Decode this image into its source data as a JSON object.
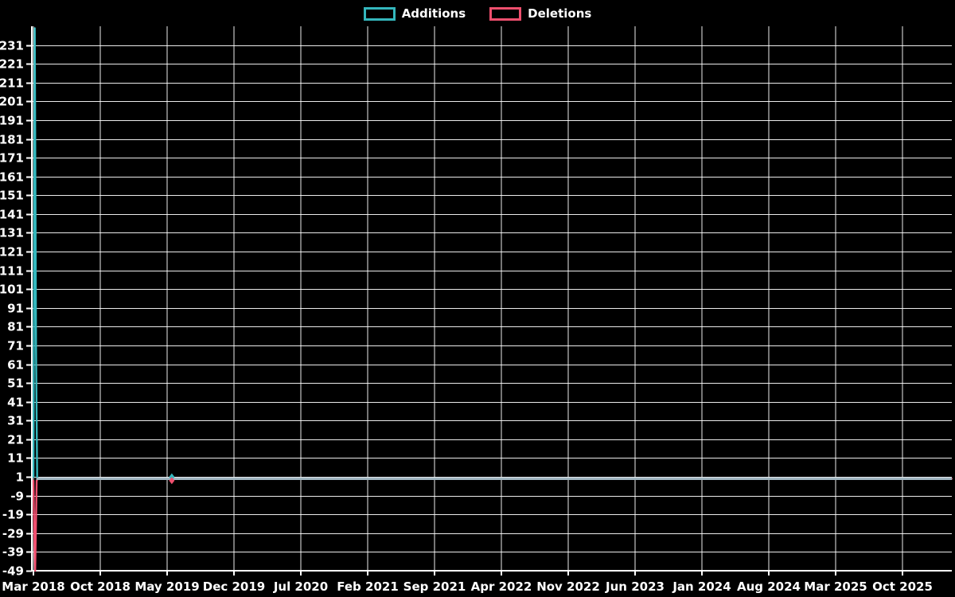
{
  "page": {
    "background": "#000000",
    "text_color": "#ffffff"
  },
  "chart_data": {
    "type": "line",
    "title": "",
    "grid": "on",
    "legend_position": "top-center",
    "x_axis_label": "",
    "y_axis_label": "",
    "x_ticks": [
      "Mar 2018",
      "Oct 2018",
      "May 2019",
      "Dec 2019",
      "Jul 2020",
      "Feb 2021",
      "Sep 2021",
      "Apr 2022",
      "Nov 2022",
      "Jun 2023",
      "Jan 2024",
      "Aug 2024",
      "Mar 2025",
      "Oct 2025"
    ],
    "y_ticks": [
      231,
      221,
      211,
      201,
      191,
      181,
      171,
      161,
      151,
      141,
      131,
      121,
      111,
      101,
      91,
      81,
      71,
      61,
      51,
      41,
      31,
      21,
      11,
      1,
      -9,
      -19,
      -29,
      -39,
      -49
    ],
    "ylim": [
      -49,
      241
    ],
    "colors": {
      "grid": "rgba(255,255,255,0.92)",
      "axis": "#ffffff",
      "text": "#ffffff",
      "baseline": "#a0b6c1",
      "additions": "#34b7bd",
      "deletions": "#ee4f6e"
    },
    "series": [
      {
        "name": "Additions",
        "color": "#34b7bd",
        "points": [
          [
            0,
            1
          ],
          [
            0.6,
            240
          ],
          [
            1.2,
            68
          ],
          [
            1.7,
            1
          ],
          [
            2.2,
            0
          ],
          [
            418,
            0
          ]
        ]
      },
      {
        "name": "Deletions",
        "color": "#ee4f6e",
        "points": [
          [
            0,
            -1
          ],
          [
            0.4,
            -31
          ],
          [
            0.8,
            -49
          ],
          [
            1.5,
            -1
          ],
          [
            2.0,
            0
          ],
          [
            418,
            0
          ]
        ]
      }
    ],
    "baseline": {
      "value": 0,
      "from_week": 1.3,
      "color": "#a0b6c1"
    },
    "markers": [
      {
        "series": "Additions",
        "week": 63,
        "value": 1,
        "shape": "diamond",
        "color": "#34b7bd"
      },
      {
        "series": "Deletions",
        "week": 63,
        "value": -1,
        "shape": "diamond",
        "color": "#ee4f6e"
      }
    ]
  }
}
